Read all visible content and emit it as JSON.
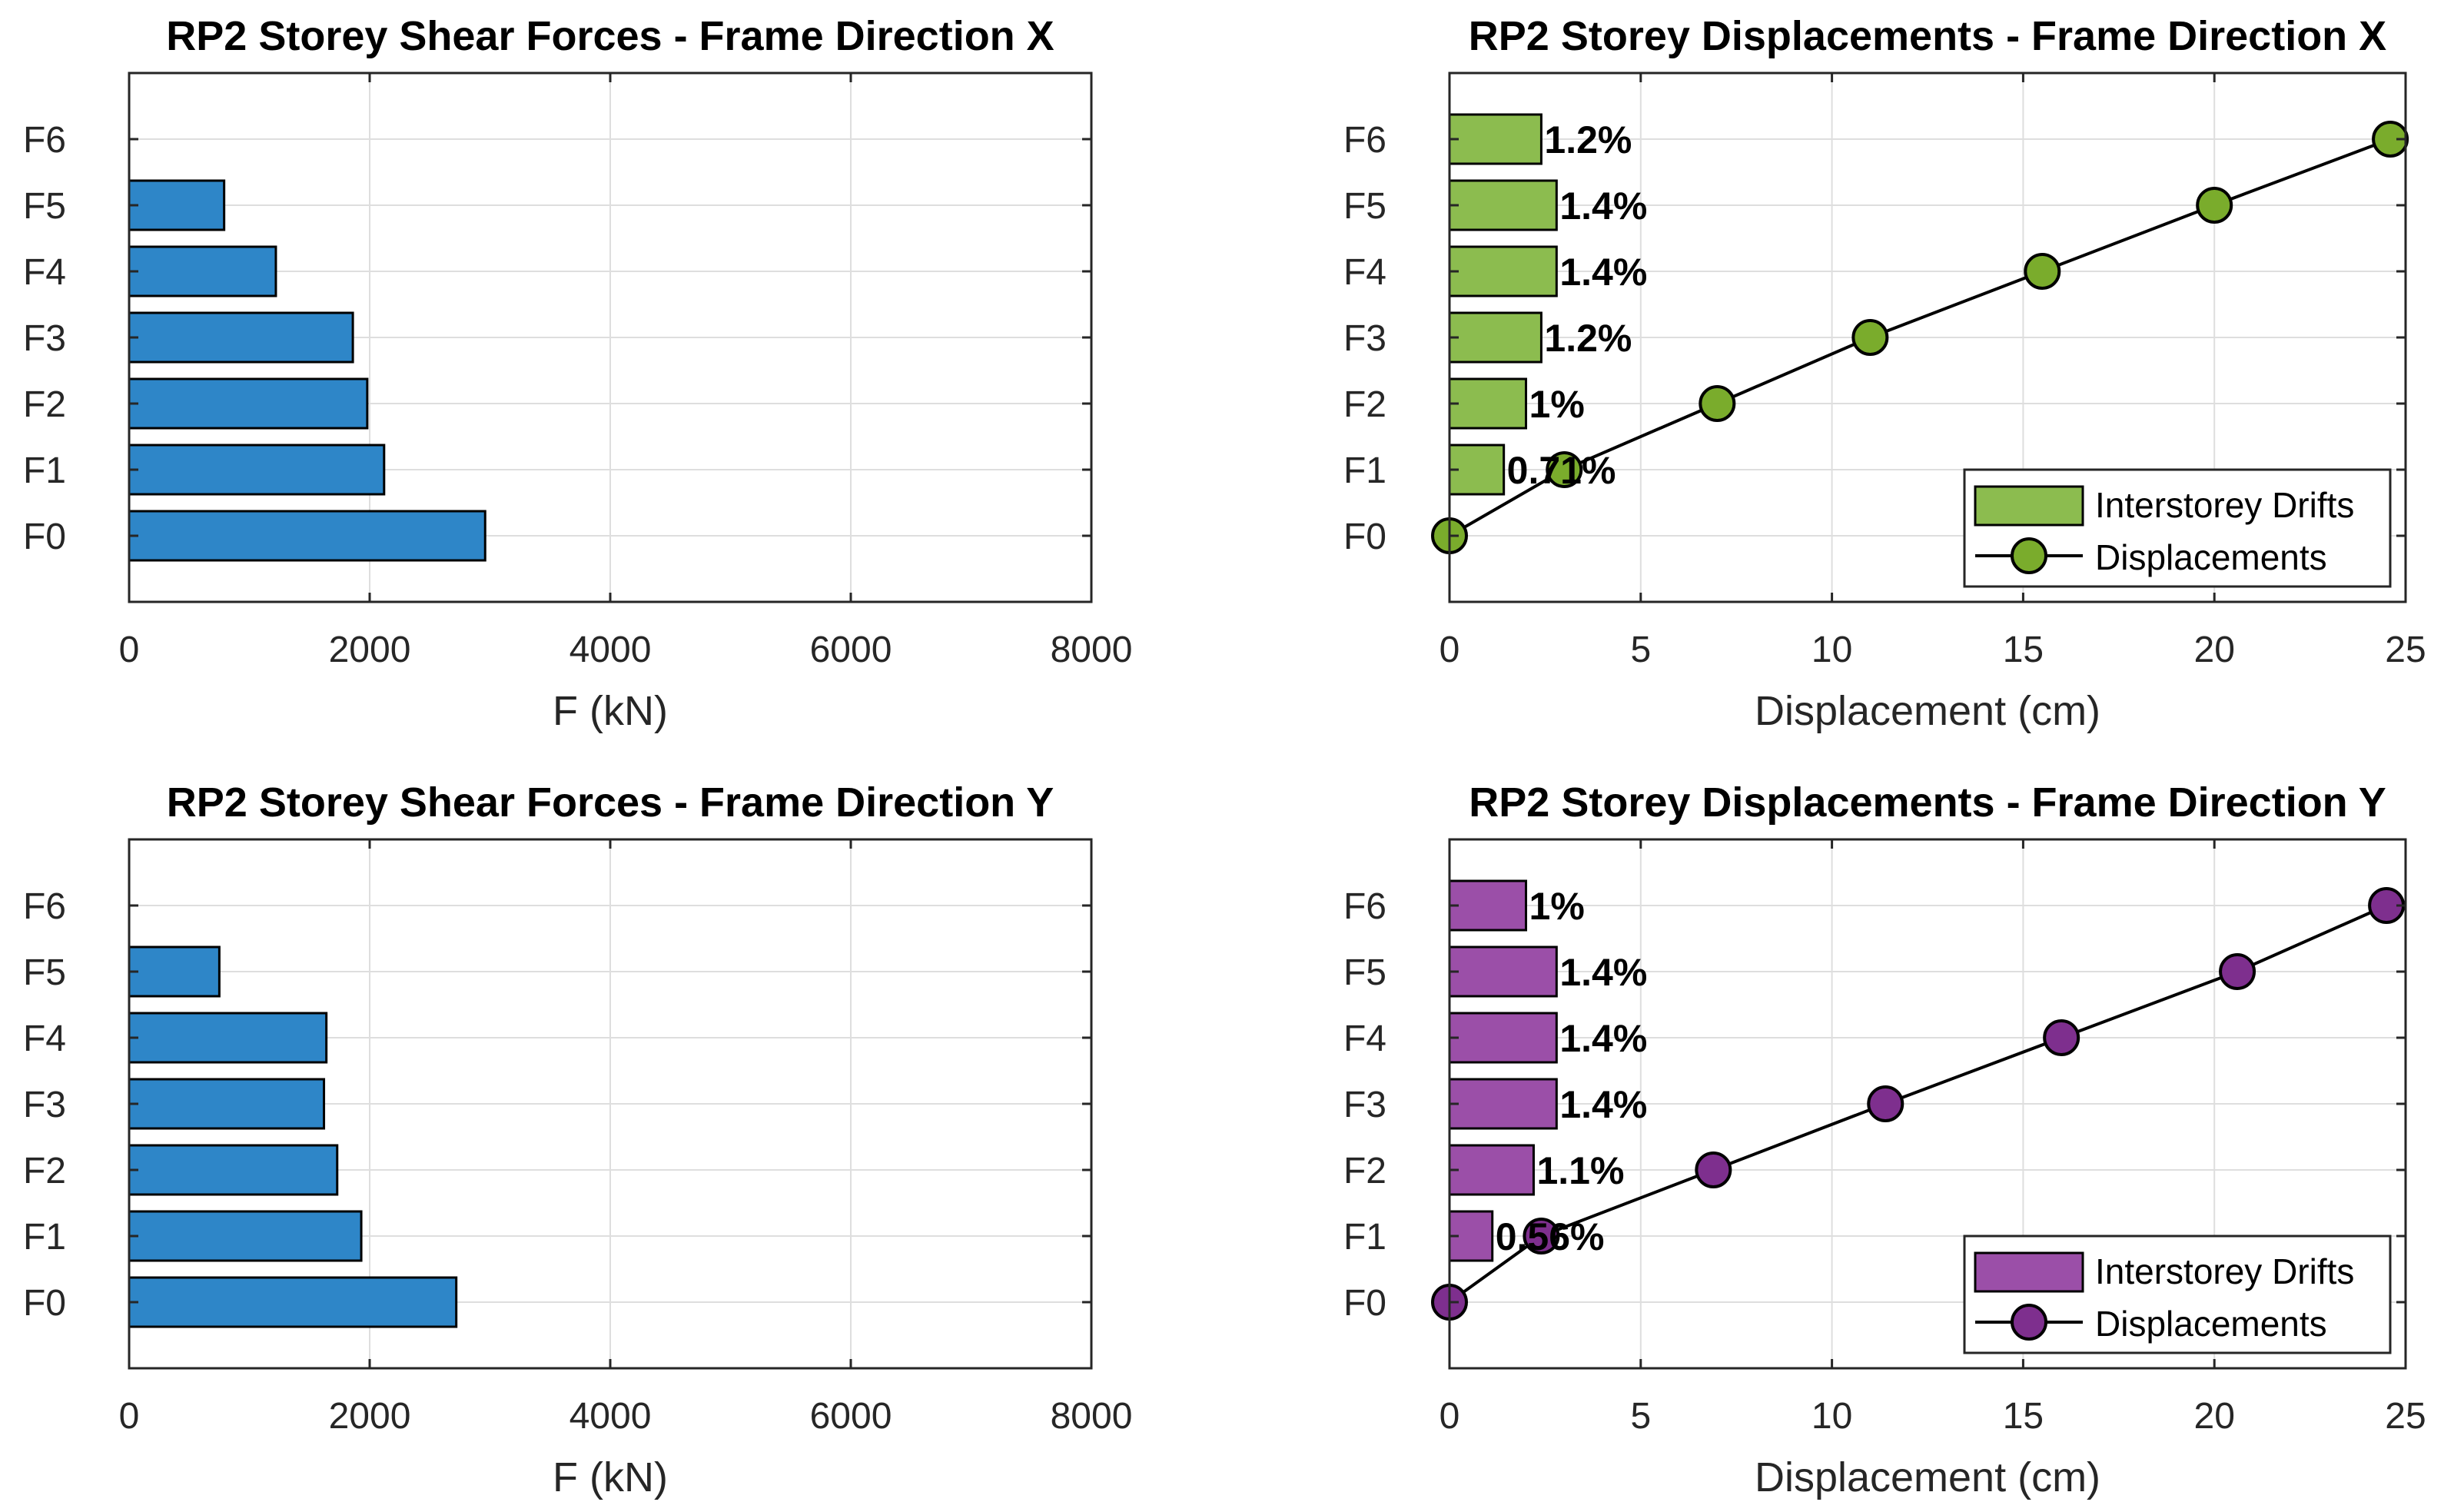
{
  "chart_data": [
    {
      "type": "bar",
      "orientation": "horizontal",
      "title": "RP2 Storey Shear Forces - Frame Direction X",
      "xlabel": "F (kN)",
      "ylabel": "",
      "categories": [
        "F0",
        "F1",
        "F2",
        "F3",
        "F4",
        "F5",
        "F6"
      ],
      "values": [
        2960,
        2120,
        1980,
        1860,
        1220,
        790,
        0
      ],
      "xlim": [
        0,
        8000
      ],
      "xticks": [
        0,
        2000,
        4000,
        6000,
        8000
      ],
      "bar_color": "#2e86c8",
      "grid": true
    },
    {
      "type": "bar+line",
      "title": "RP2 Storey Displacements - Frame Direction X",
      "xlabel": "Displacement (cm)",
      "ylabel": "",
      "categories": [
        "F0",
        "F1",
        "F2",
        "F3",
        "F4",
        "F5",
        "F6"
      ],
      "series": [
        {
          "name": "Interstorey Drifts",
          "kind": "bar",
          "values": [
            0,
            1.42,
            2.0,
            2.4,
            2.8,
            2.8,
            2.4
          ],
          "labels": [
            "",
            "0.71%",
            "1%",
            "1.2%",
            "1.4%",
            "1.4%",
            "1.2%"
          ],
          "color": "#8cbc4f"
        },
        {
          "name": "Displacements",
          "kind": "line",
          "values": [
            0,
            3.0,
            7.0,
            11.0,
            15.5,
            20.0,
            24.6
          ],
          "color": "#7aac2c"
        }
      ],
      "xlim": [
        0,
        25
      ],
      "xticks": [
        0,
        5,
        10,
        15,
        20,
        25
      ],
      "legend": "bottom-right",
      "grid": true
    },
    {
      "type": "bar",
      "orientation": "horizontal",
      "title": "RP2 Storey Shear Forces - Frame Direction Y",
      "xlabel": "F (kN)",
      "ylabel": "",
      "categories": [
        "F0",
        "F1",
        "F2",
        "F3",
        "F4",
        "F5",
        "F6"
      ],
      "values": [
        2720,
        1930,
        1730,
        1620,
        1640,
        750,
        0
      ],
      "xlim": [
        0,
        8000
      ],
      "xticks": [
        0,
        2000,
        4000,
        6000,
        8000
      ],
      "bar_color": "#2e86c8",
      "grid": true
    },
    {
      "type": "bar+line",
      "title": "RP2 Storey Displacements - Frame Direction Y",
      "xlabel": "Displacement (cm)",
      "ylabel": "",
      "categories": [
        "F0",
        "F1",
        "F2",
        "F3",
        "F4",
        "F5",
        "F6"
      ],
      "series": [
        {
          "name": "Interstorey Drifts",
          "kind": "bar",
          "values": [
            0,
            1.12,
            2.2,
            2.8,
            2.8,
            2.8,
            2.0
          ],
          "labels": [
            "",
            "0.56%",
            "1.1%",
            "1.4%",
            "1.4%",
            "1.4%",
            "1%"
          ],
          "color": "#9b4fa8"
        },
        {
          "name": "Displacements",
          "kind": "line",
          "values": [
            0,
            2.4,
            6.9,
            11.4,
            16.0,
            20.6,
            24.5
          ],
          "color": "#7e2f8e"
        }
      ],
      "xlim": [
        0,
        25
      ],
      "xticks": [
        0,
        5,
        10,
        15,
        20,
        25
      ],
      "legend": "bottom-right",
      "grid": true
    }
  ]
}
